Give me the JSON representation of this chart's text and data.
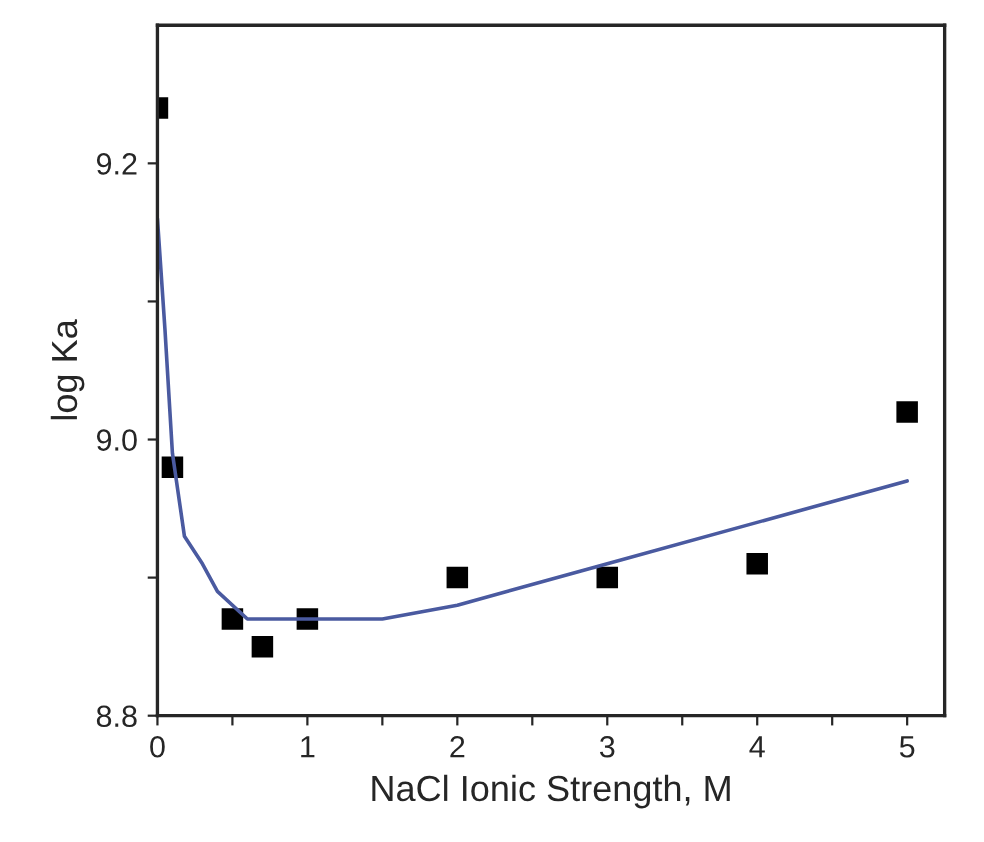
{
  "chart_data": {
    "type": "scatter",
    "xlabel": "NaCl Ionic Strength, M",
    "ylabel": "log Ka",
    "xlim": [
      0,
      5.25
    ],
    "ylim": [
      8.8,
      9.3
    ],
    "xticks": [
      0,
      {
        "value": 0.5,
        "label": null
      },
      1,
      {
        "value": 1.5,
        "label": null
      },
      2,
      {
        "value": 2.5,
        "label": null
      },
      3,
      {
        "value": 3.5,
        "label": null
      },
      4,
      {
        "value": 4.5,
        "label": null
      },
      5
    ],
    "yticks": [
      {
        "value": 8.8,
        "label": "8.8"
      },
      {
        "value": 8.9,
        "label": null
      },
      {
        "value": 9.0,
        "label": "9.0"
      },
      {
        "value": 9.1,
        "label": null
      },
      {
        "value": 9.2,
        "label": "9.2"
      }
    ],
    "grid": false,
    "legend": false,
    "series": [
      {
        "color": "#000000",
        "marker": "square",
        "x": [
          0,
          0.1,
          0.5,
          0.7,
          1,
          2,
          3,
          4,
          5
        ],
        "values": [
          9.24,
          8.98,
          8.87,
          8.85,
          8.87,
          8.9,
          8.9,
          8.91,
          9.02
        ]
      },
      {
        "type": "line",
        "color": "#4a5aa0",
        "marker": "none",
        "line_style": "solid",
        "x": [
          0,
          0.05,
          0.1,
          0.18,
          0.3,
          0.4,
          0.6,
          1,
          1.5,
          2,
          3,
          4,
          5
        ],
        "values": [
          9.16,
          9.08,
          8.99,
          8.93,
          8.91,
          8.89,
          8.87,
          8.87,
          8.87,
          8.88,
          8.91,
          8.94,
          8.97
        ]
      }
    ]
  }
}
